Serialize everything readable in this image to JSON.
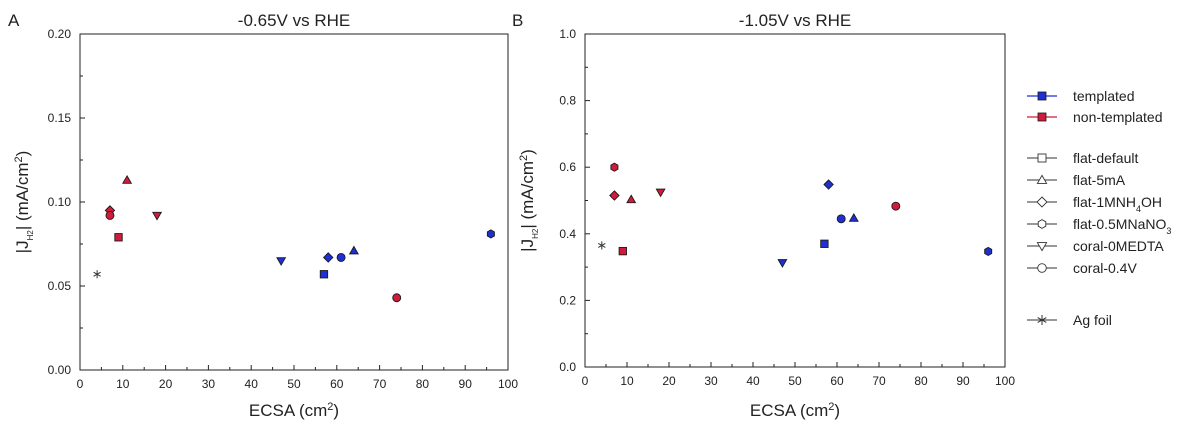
{
  "chart_data": [
    {
      "type": "scatter",
      "panel_label": "A",
      "title": "-0.65V vs RHE",
      "xlabel": "ECSA (cm",
      "xlabel_sup": "2",
      "xlabel_end": ")",
      "ylabel": "|J",
      "ylabel_sub": "H2",
      "ylabel_end": "| (mA/cm",
      "ylabel_sup": "2",
      "ylabel_close": ")",
      "xlim": [
        0,
        100
      ],
      "ylim": [
        0,
        0.2
      ],
      "xticks": [
        "0",
        "10",
        "20",
        "30",
        "40",
        "50",
        "60",
        "70",
        "80",
        "90",
        "100"
      ],
      "yticks": [
        "0.00",
        "0.05",
        "0.10",
        "0.15",
        "0.20"
      ],
      "points": [
        {
          "x": 4,
          "y": 0.057,
          "marker": "star",
          "group": "ag"
        },
        {
          "x": 7,
          "y": 0.095,
          "marker": "diamond",
          "group": "non-templated"
        },
        {
          "x": 7,
          "y": 0.092,
          "marker": "circle",
          "group": "non-templated"
        },
        {
          "x": 9,
          "y": 0.079,
          "marker": "square",
          "group": "non-templated"
        },
        {
          "x": 11,
          "y": 0.113,
          "marker": "triangle-up",
          "group": "non-templated"
        },
        {
          "x": 18,
          "y": 0.092,
          "marker": "triangle-down",
          "group": "non-templated"
        },
        {
          "x": 47,
          "y": 0.065,
          "marker": "triangle-down",
          "group": "templated"
        },
        {
          "x": 57,
          "y": 0.057,
          "marker": "square",
          "group": "templated"
        },
        {
          "x": 58,
          "y": 0.067,
          "marker": "diamond",
          "group": "templated"
        },
        {
          "x": 61,
          "y": 0.067,
          "marker": "circle",
          "group": "templated"
        },
        {
          "x": 64,
          "y": 0.071,
          "marker": "triangle-up",
          "group": "templated"
        },
        {
          "x": 74,
          "y": 0.043,
          "marker": "circle",
          "group": "non-templated"
        },
        {
          "x": 96,
          "y": 0.081,
          "marker": "hexagon",
          "group": "templated"
        }
      ]
    },
    {
      "type": "scatter",
      "panel_label": "B",
      "title": "-1.05V vs RHE",
      "xlabel": "ECSA (cm",
      "xlabel_sup": "2",
      "xlabel_end": ")",
      "ylabel": "|J",
      "ylabel_sub": "H2",
      "ylabel_end": "| (mA/cm",
      "ylabel_sup": "2",
      "ylabel_close": ")",
      "xlim": [
        0,
        100
      ],
      "ylim": [
        0,
        1.0
      ],
      "xticks": [
        "0",
        "10",
        "20",
        "30",
        "40",
        "50",
        "60",
        "70",
        "80",
        "90",
        "100"
      ],
      "yticks": [
        "0.0",
        "0.2",
        "0.4",
        "0.6",
        "0.8",
        "1.0"
      ],
      "points": [
        {
          "x": 4,
          "y": 0.365,
          "marker": "star",
          "group": "ag"
        },
        {
          "x": 7,
          "y": 0.6,
          "marker": "hexagon",
          "group": "non-templated"
        },
        {
          "x": 7,
          "y": 0.515,
          "marker": "diamond",
          "group": "non-templated"
        },
        {
          "x": 9,
          "y": 0.348,
          "marker": "square",
          "group": "non-templated"
        },
        {
          "x": 11,
          "y": 0.503,
          "marker": "triangle-up",
          "group": "non-templated"
        },
        {
          "x": 18,
          "y": 0.525,
          "marker": "triangle-down",
          "group": "non-templated"
        },
        {
          "x": 47,
          "y": 0.313,
          "marker": "triangle-down",
          "group": "templated"
        },
        {
          "x": 57,
          "y": 0.37,
          "marker": "square",
          "group": "templated"
        },
        {
          "x": 58,
          "y": 0.548,
          "marker": "diamond",
          "group": "templated"
        },
        {
          "x": 61,
          "y": 0.445,
          "marker": "circle",
          "group": "templated"
        },
        {
          "x": 64,
          "y": 0.447,
          "marker": "triangle-up",
          "group": "templated"
        },
        {
          "x": 74,
          "y": 0.483,
          "marker": "circle",
          "group": "non-templated"
        },
        {
          "x": 96,
          "y": 0.347,
          "marker": "hexagon",
          "group": "templated"
        }
      ]
    }
  ],
  "colors": {
    "templated": "#1f2fd6",
    "non-templated": "#d11a3c",
    "ag": "#333333",
    "axis": "#222222"
  },
  "legend": {
    "color_entries": [
      {
        "label": "templated",
        "group": "templated"
      },
      {
        "label": "non-templated",
        "group": "non-templated"
      }
    ],
    "marker_entries": [
      {
        "label": "flat-default",
        "marker": "square"
      },
      {
        "label": "flat-5mA",
        "marker": "triangle-up"
      },
      {
        "label": "flat-1MNH",
        "sub": "4",
        "label_end": "OH",
        "marker": "diamond"
      },
      {
        "label": "flat-0.5MNaNO",
        "sub": "3",
        "label_end": "",
        "marker": "hexagon"
      },
      {
        "label": "coral-0MEDTA",
        "marker": "triangle-down"
      },
      {
        "label": "coral-0.4V",
        "marker": "circle"
      }
    ],
    "ag_entry": {
      "label": "Ag foil",
      "marker": "star"
    }
  }
}
